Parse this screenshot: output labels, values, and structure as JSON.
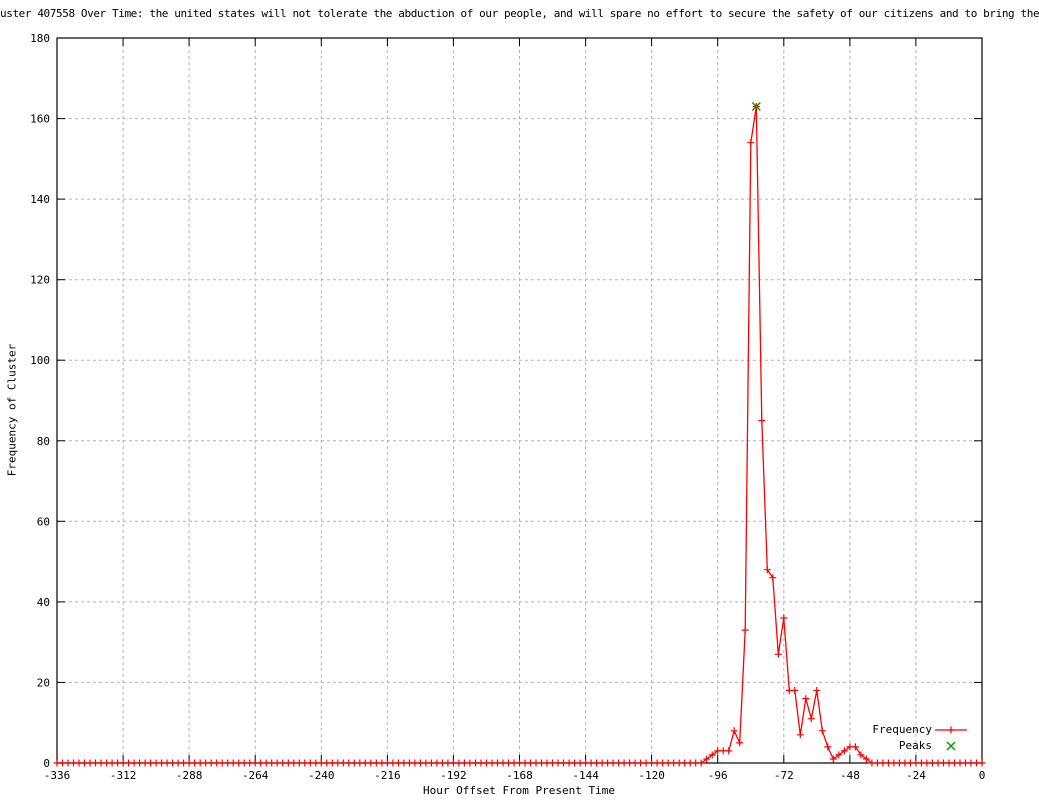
{
  "chart_data": {
    "type": "line",
    "title": "uster 407558 Over Time: the united states will not tolerate the abduction of our people, and will spare no effort to secure the safety of our citizens and to bring the",
    "xlabel": "Hour Offset From Present Time",
    "ylabel": "Frequency of Cluster",
    "xlim": [
      -336,
      0
    ],
    "ylim": [
      0,
      180
    ],
    "xticks": [
      -336,
      -312,
      -288,
      -264,
      -240,
      -216,
      -192,
      -168,
      -144,
      -120,
      -96,
      -72,
      -48,
      -24,
      0
    ],
    "yticks": [
      0,
      20,
      40,
      60,
      80,
      100,
      120,
      140,
      160,
      180
    ],
    "grid": true,
    "legend_position": "bottom-right-inside",
    "colors": {
      "frequency": "#ff0000",
      "peaks": "#00a000",
      "grid": "#b4b4b4",
      "axis": "#000000",
      "background": "#ffffff"
    },
    "series": [
      {
        "name": "Frequency",
        "style": "linespoints",
        "marker": "plus",
        "color": "#ff0000",
        "x_start": -336,
        "x_step": 2,
        "x_end": 0,
        "default_value": 0,
        "nonzero": {
          "-100": 1,
          "-98": 2,
          "-96": 3,
          "-94": 3,
          "-92": 3,
          "-90": 8,
          "-88": 5,
          "-86": 33,
          "-84": 154,
          "-82": 163,
          "-80": 85,
          "-78": 48,
          "-76": 46,
          "-74": 27,
          "-72": 36,
          "-70": 18,
          "-68": 18,
          "-66": 7,
          "-64": 16,
          "-62": 11,
          "-60": 18,
          "-58": 8,
          "-56": 4,
          "-54": 1,
          "-52": 2,
          "-50": 3,
          "-48": 4,
          "-46": 4,
          "-44": 2,
          "-42": 1
        }
      },
      {
        "name": "Peaks",
        "style": "points",
        "marker": "x",
        "color": "#00a000",
        "points": [
          [
            -82,
            163
          ]
        ]
      }
    ]
  }
}
